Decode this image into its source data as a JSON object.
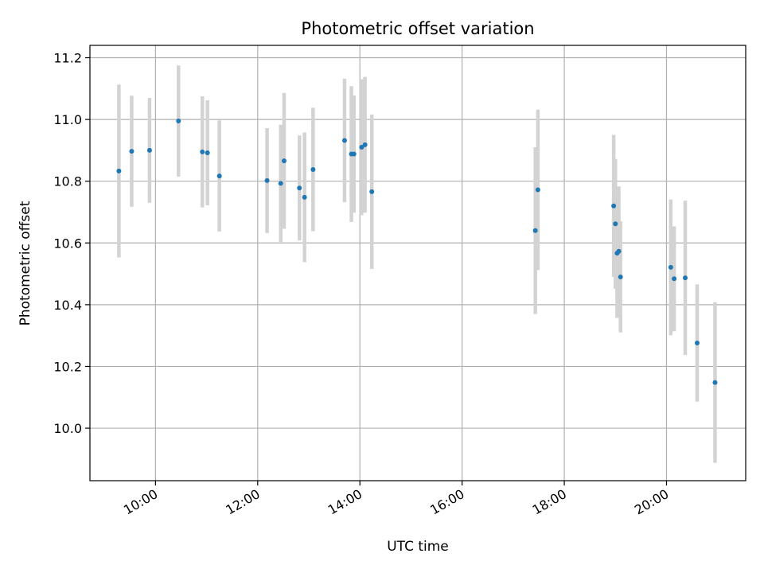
{
  "chart_data": {
    "type": "scatter",
    "title": "Photometric offset variation",
    "xlabel": "UTC time",
    "ylabel": "Photometric offset",
    "x_ticks": [
      "10:00",
      "12:00",
      "14:00",
      "16:00",
      "18:00",
      "20:00"
    ],
    "y_ticks": [
      "10.0",
      "10.2",
      "10.4",
      "10.6",
      "10.8",
      "11.0",
      "11.2"
    ],
    "xlim": [
      "08:43",
      "21:33"
    ],
    "ylim": [
      9.83,
      11.24
    ],
    "grid": true,
    "colors": {
      "points": "#1f77b4",
      "error_bars": "#d3d3d3",
      "grid": "#b0b0b0"
    },
    "points": [
      {
        "x": "09:17",
        "y": 10.833,
        "err": 0.28
      },
      {
        "x": "09:32",
        "y": 10.897,
        "err": 0.18
      },
      {
        "x": "09:53",
        "y": 10.9,
        "err": 0.17
      },
      {
        "x": "10:27",
        "y": 10.995,
        "err": 0.18
      },
      {
        "x": "10:55",
        "y": 10.895,
        "err": 0.18
      },
      {
        "x": "11:01",
        "y": 10.892,
        "err": 0.17
      },
      {
        "x": "11:15",
        "y": 10.817,
        "err": 0.18
      },
      {
        "x": "12:11",
        "y": 10.802,
        "err": 0.17
      },
      {
        "x": "12:27",
        "y": 10.793,
        "err": 0.19
      },
      {
        "x": "12:31",
        "y": 10.866,
        "err": 0.22
      },
      {
        "x": "12:49",
        "y": 10.778,
        "err": 0.17
      },
      {
        "x": "12:55",
        "y": 10.748,
        "err": 0.21
      },
      {
        "x": "13:05",
        "y": 10.838,
        "err": 0.2
      },
      {
        "x": "13:42",
        "y": 10.932,
        "err": 0.2
      },
      {
        "x": "13:50",
        "y": 10.888,
        "err": 0.22
      },
      {
        "x": "13:53",
        "y": 10.888,
        "err": 0.19
      },
      {
        "x": "14:02",
        "y": 10.91,
        "err": 0.22
      },
      {
        "x": "14:06",
        "y": 10.918,
        "err": 0.22
      },
      {
        "x": "14:14",
        "y": 10.766,
        "err": 0.25
      },
      {
        "x": "17:26",
        "y": 10.64,
        "err": 0.27
      },
      {
        "x": "17:29",
        "y": 10.772,
        "err": 0.26
      },
      {
        "x": "18:58",
        "y": 10.72,
        "err": 0.23
      },
      {
        "x": "19:00",
        "y": 10.662,
        "err": 0.21
      },
      {
        "x": "19:02",
        "y": 10.567,
        "err": 0.21
      },
      {
        "x": "19:04",
        "y": 10.573,
        "err": 0.21
      },
      {
        "x": "19:06",
        "y": 10.49,
        "err": 0.18
      },
      {
        "x": "20:05",
        "y": 10.521,
        "err": 0.22
      },
      {
        "x": "20:09",
        "y": 10.484,
        "err": 0.17
      },
      {
        "x": "20:22",
        "y": 10.487,
        "err": 0.25
      },
      {
        "x": "20:36",
        "y": 10.276,
        "err": 0.19
      },
      {
        "x": "20:57",
        "y": 10.148,
        "err": 0.26
      }
    ]
  }
}
